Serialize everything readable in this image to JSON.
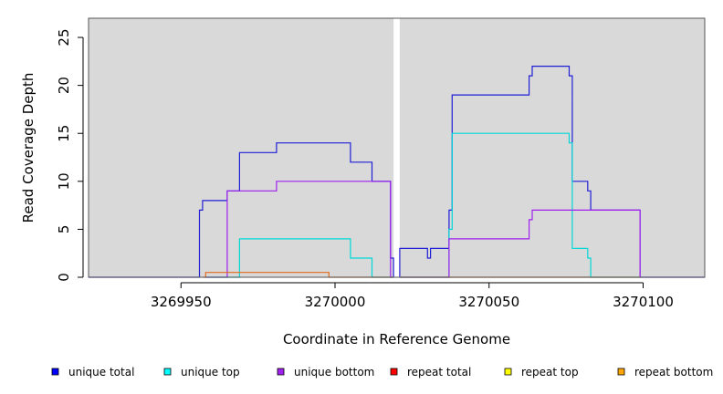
{
  "chart_data": {
    "type": "line",
    "title": "",
    "xlabel": "Coordinate in Reference Genome",
    "ylabel": "Read Coverage Depth",
    "xlim": [
      3269920,
      3270120
    ],
    "ylim": [
      0,
      27
    ],
    "x_ticks": [
      3269950,
      3270000,
      3270050,
      3270100
    ],
    "x_tick_labels": [
      "3269950",
      "3270000",
      "3270050",
      "3270100"
    ],
    "y_ticks": [
      0,
      5,
      10,
      15,
      20,
      25
    ],
    "y_tick_labels": [
      "0",
      "5",
      "10",
      "15",
      "20",
      "25"
    ],
    "background_color": "#d9d9d9",
    "gap_region": [
      3270019,
      3270021
    ],
    "legend_position": "bottom",
    "legend": [
      {
        "label": "unique total",
        "color": "#0000ff"
      },
      {
        "label": "unique top",
        "color": "#00ffff"
      },
      {
        "label": "unique bottom",
        "color": "#a020f0"
      },
      {
        "label": "repeat total",
        "color": "#ff0000"
      },
      {
        "label": "repeat top",
        "color": "#ffff00"
      },
      {
        "label": "repeat bottom",
        "color": "#ffa500"
      }
    ],
    "series": [
      {
        "color": "#1f1fd6",
        "step_points": [
          [
            3269920,
            0
          ],
          [
            3269956,
            0
          ],
          [
            3269956,
            7
          ],
          [
            3269957,
            7
          ],
          [
            3269957,
            8
          ],
          [
            3269965,
            8
          ],
          [
            3269965,
            9
          ],
          [
            3269969,
            9
          ],
          [
            3269969,
            13
          ],
          [
            3269981,
            13
          ],
          [
            3269981,
            14
          ],
          [
            3270005,
            14
          ],
          [
            3270005,
            12
          ],
          [
            3270012,
            12
          ],
          [
            3270012,
            10
          ],
          [
            3270018,
            10
          ],
          [
            3270018,
            2
          ],
          [
            3270019,
            2
          ],
          [
            3270019,
            0
          ]
        ]
      },
      {
        "color": "#1f1fd6",
        "step_points": [
          [
            3270021,
            0
          ],
          [
            3270021,
            3
          ],
          [
            3270030,
            3
          ],
          [
            3270030,
            2
          ],
          [
            3270031,
            2
          ],
          [
            3270031,
            3
          ],
          [
            3270037,
            3
          ],
          [
            3270037,
            7
          ],
          [
            3270038,
            7
          ],
          [
            3270038,
            19
          ],
          [
            3270063,
            19
          ],
          [
            3270063,
            21
          ],
          [
            3270064,
            21
          ],
          [
            3270064,
            22
          ],
          [
            3270076,
            22
          ],
          [
            3270076,
            21
          ],
          [
            3270077,
            21
          ],
          [
            3270077,
            10
          ],
          [
            3270082,
            10
          ],
          [
            3270082,
            9
          ],
          [
            3270083,
            9
          ],
          [
            3270083,
            7
          ],
          [
            3270099,
            7
          ],
          [
            3270099,
            0
          ],
          [
            3270120,
            0
          ]
        ]
      },
      {
        "color": "#00d8d8",
        "step_points": [
          [
            3269958,
            0
          ],
          [
            3269969,
            0
          ],
          [
            3269969,
            4
          ],
          [
            3270005,
            4
          ],
          [
            3270005,
            2
          ],
          [
            3270012,
            2
          ],
          [
            3270012,
            0
          ],
          [
            3270019,
            0
          ]
        ]
      },
      {
        "color": "#00d8d8",
        "step_points": [
          [
            3270021,
            0
          ],
          [
            3270037,
            0
          ],
          [
            3270037,
            5
          ],
          [
            3270038,
            5
          ],
          [
            3270038,
            15
          ],
          [
            3270076,
            15
          ],
          [
            3270076,
            14
          ],
          [
            3270077,
            14
          ],
          [
            3270077,
            3
          ],
          [
            3270082,
            3
          ],
          [
            3270082,
            2
          ],
          [
            3270083,
            2
          ],
          [
            3270083,
            0
          ],
          [
            3270099,
            0
          ]
        ]
      },
      {
        "color": "#a020f0",
        "step_points": [
          [
            3269958,
            0
          ],
          [
            3269965,
            0
          ],
          [
            3269965,
            9
          ],
          [
            3269981,
            9
          ],
          [
            3269981,
            10
          ],
          [
            3270018,
            10
          ],
          [
            3270018,
            0
          ],
          [
            3270019,
            0
          ]
        ]
      },
      {
        "color": "#a020f0",
        "step_points": [
          [
            3270021,
            0
          ],
          [
            3270037,
            0
          ],
          [
            3270037,
            4
          ],
          [
            3270063,
            4
          ],
          [
            3270063,
            6
          ],
          [
            3270064,
            6
          ],
          [
            3270064,
            7
          ],
          [
            3270099,
            7
          ],
          [
            3270099,
            0
          ]
        ]
      },
      {
        "color": "#e26a1c",
        "step_points": [
          [
            3269957,
            0
          ],
          [
            3269958,
            0
          ],
          [
            3269958,
            0.5
          ],
          [
            3269998,
            0.5
          ],
          [
            3269998,
            0
          ],
          [
            3270019,
            0
          ]
        ]
      },
      {
        "color": "#e26a1c",
        "step_points": [
          [
            3270021,
            0
          ],
          [
            3270099,
            0
          ]
        ]
      }
    ]
  }
}
